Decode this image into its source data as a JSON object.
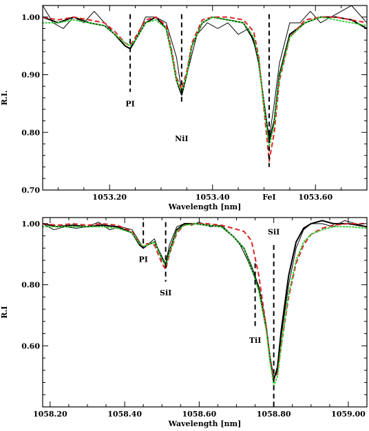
{
  "chart_data": [
    {
      "type": "line",
      "xlabel": "Wavelength [nm]",
      "ylabel": "R.I.",
      "xlim": [
        1053.07,
        1053.7
      ],
      "ylim": [
        0.7,
        1.02
      ],
      "x_ticks": [
        1053.2,
        1053.4,
        1053.6
      ],
      "x_tick_labels": [
        "1053.20",
        "1053.40",
        "1053.60"
      ],
      "y_ticks": [
        0.7,
        0.8,
        0.9,
        1.0
      ],
      "y_tick_labels": [
        "0.70",
        "0.80",
        "0.90",
        "1.00"
      ],
      "grid": false,
      "legend": "none",
      "line_markers": [
        {
          "label": "PI",
          "x": 1053.24,
          "y_top": 1.005,
          "y_bottom": 0.87
        },
        {
          "label": "NiI",
          "x": 1053.34,
          "y_top": 1.005,
          "y_bottom": 0.85
        },
        {
          "label": "FeI",
          "x": 1053.51,
          "y_top": 1.005,
          "y_bottom": 0.74
        }
      ],
      "series": [
        {
          "color": "#000000",
          "style": "solid",
          "width": 1.0,
          "x": [
            1053.07,
            1053.09,
            1053.11,
            1053.13,
            1053.15,
            1053.17,
            1053.19,
            1053.21,
            1053.23,
            1053.24,
            1053.25,
            1053.27,
            1053.29,
            1053.31,
            1053.33,
            1053.34,
            1053.35,
            1053.37,
            1053.39,
            1053.41,
            1053.43,
            1053.45,
            1053.47,
            1053.49,
            1053.5,
            1053.51,
            1053.52,
            1053.53,
            1053.55,
            1053.57,
            1053.59,
            1053.61,
            1053.63,
            1053.65,
            1053.67,
            1053.69,
            1053.7
          ],
          "y": [
            1.02,
            0.99,
            0.98,
            1.0,
            0.99,
            1.01,
            0.99,
            0.97,
            0.95,
            0.945,
            0.96,
            1.0,
            1.0,
            0.99,
            0.93,
            0.87,
            0.9,
            0.97,
            0.99,
            0.98,
            0.99,
            0.97,
            0.98,
            0.93,
            0.84,
            0.79,
            0.85,
            0.92,
            0.99,
            0.99,
            1.01,
            0.99,
            1.0,
            1.01,
            1.02,
            1.0,
            0.99
          ]
        },
        {
          "color": "#000000",
          "style": "solid",
          "width": 2.0,
          "x": [
            1053.07,
            1053.1,
            1053.13,
            1053.16,
            1053.19,
            1053.21,
            1053.23,
            1053.24,
            1053.25,
            1053.27,
            1053.29,
            1053.31,
            1053.32,
            1053.33,
            1053.34,
            1053.35,
            1053.36,
            1053.38,
            1053.4,
            1053.43,
            1053.46,
            1053.48,
            1053.49,
            1053.5,
            1053.51,
            1053.52,
            1053.53,
            1053.55,
            1053.58,
            1053.61,
            1053.64,
            1053.67,
            1053.7
          ],
          "y": [
            1.0,
            0.99,
            1.0,
            0.99,
            0.985,
            0.97,
            0.95,
            0.945,
            0.96,
            0.99,
            1.0,
            0.98,
            0.94,
            0.89,
            0.865,
            0.9,
            0.95,
            0.99,
            1.0,
            0.995,
            0.99,
            0.96,
            0.92,
            0.85,
            0.785,
            0.82,
            0.9,
            0.97,
            0.99,
            1.0,
            1.0,
            0.995,
            0.98
          ]
        },
        {
          "color": "#dd2222",
          "style": "dashed",
          "width": 2.0,
          "x": [
            1053.07,
            1053.1,
            1053.13,
            1053.16,
            1053.19,
            1053.21,
            1053.23,
            1053.24,
            1053.25,
            1053.27,
            1053.29,
            1053.31,
            1053.32,
            1053.33,
            1053.34,
            1053.35,
            1053.36,
            1053.38,
            1053.4,
            1053.43,
            1053.46,
            1053.48,
            1053.49,
            1053.5,
            1053.51,
            1053.52,
            1053.53,
            1053.55,
            1053.58,
            1053.61,
            1053.64,
            1053.67,
            1053.7
          ],
          "y": [
            1.0,
            0.995,
            1.0,
            0.995,
            0.99,
            0.975,
            0.955,
            0.95,
            0.965,
            0.995,
            1.0,
            0.985,
            0.945,
            0.895,
            0.875,
            0.905,
            0.955,
            0.995,
            1.0,
            1.0,
            0.995,
            0.975,
            0.93,
            0.84,
            0.75,
            0.8,
            0.89,
            0.965,
            0.995,
            1.0,
            1.0,
            0.995,
            0.99
          ]
        },
        {
          "color": "#33cc33",
          "style": "dotted",
          "width": 2.0,
          "x": [
            1053.07,
            1053.1,
            1053.13,
            1053.16,
            1053.19,
            1053.21,
            1053.23,
            1053.24,
            1053.25,
            1053.27,
            1053.29,
            1053.31,
            1053.32,
            1053.33,
            1053.34,
            1053.35,
            1053.36,
            1053.38,
            1053.4,
            1053.43,
            1053.46,
            1053.48,
            1053.49,
            1053.5,
            1053.51,
            1053.52,
            1053.53,
            1053.55,
            1053.58,
            1053.61,
            1053.64,
            1053.67,
            1053.7
          ],
          "y": [
            0.99,
            0.99,
            0.995,
            0.99,
            0.985,
            0.97,
            0.955,
            0.95,
            0.96,
            0.99,
            0.995,
            0.98,
            0.94,
            0.89,
            0.87,
            0.9,
            0.95,
            0.99,
            1.0,
            0.995,
            0.99,
            0.965,
            0.925,
            0.845,
            0.775,
            0.815,
            0.895,
            0.965,
            0.99,
            1.0,
            0.995,
            0.99,
            0.985
          ]
        }
      ]
    },
    {
      "type": "line",
      "xlabel": "Wavelength [nm]",
      "ylabel": "R.I",
      "xlim": [
        1058.18,
        1059.05
      ],
      "ylim": [
        0.4,
        1.02
      ],
      "x_ticks": [
        1058.2,
        1058.4,
        1058.6,
        1058.8,
        1059.0
      ],
      "x_tick_labels": [
        "1058.20",
        "1058.40",
        "1058.60",
        "1058.80",
        "1059.00"
      ],
      "y_ticks": [
        0.6,
        0.8,
        1.0
      ],
      "y_tick_labels": [
        "0.60",
        "0.80",
        "1.00"
      ],
      "grid": false,
      "legend": "none",
      "line_markers": [
        {
          "label": "PI",
          "x": 1058.45,
          "y_top": 1.005,
          "y_bottom": 0.92
        },
        {
          "label": "SiI",
          "x": 1058.51,
          "y_top": 1.005,
          "y_bottom": 0.81
        },
        {
          "label": "TiI",
          "x": 1058.75,
          "y_top": 0.87,
          "y_bottom": 0.66
        },
        {
          "label": "SiI",
          "x": 1058.8,
          "y_top": 0.93,
          "y_bottom": 0.4
        }
      ],
      "series": [
        {
          "color": "#000000",
          "style": "solid",
          "width": 1.0,
          "x": [
            1058.18,
            1058.21,
            1058.24,
            1058.27,
            1058.3,
            1058.33,
            1058.36,
            1058.39,
            1058.42,
            1058.44,
            1058.45,
            1058.46,
            1058.48,
            1058.5,
            1058.51,
            1058.52,
            1058.54,
            1058.56,
            1058.58,
            1058.6,
            1058.63,
            1058.66,
            1058.69,
            1058.71,
            1058.73,
            1058.75,
            1058.76,
            1058.78,
            1058.79,
            1058.8,
            1058.81,
            1058.82,
            1058.84,
            1058.86,
            1058.88,
            1058.9,
            1058.93,
            1058.96,
            1058.99,
            1059.02,
            1059.05
          ],
          "y": [
            1.0,
            0.98,
            0.99,
            0.985,
            0.99,
            1.005,
            0.98,
            0.99,
            0.98,
            0.94,
            0.92,
            0.93,
            0.95,
            0.88,
            0.87,
            0.93,
            0.99,
            1.0,
            0.995,
            1.005,
            0.99,
            0.995,
            0.96,
            0.93,
            0.88,
            0.82,
            0.78,
            0.65,
            0.55,
            0.49,
            0.52,
            0.63,
            0.8,
            0.92,
            0.98,
            1.0,
            1.0,
            0.99,
            1.01,
            1.0,
            0.99
          ]
        },
        {
          "color": "#000000",
          "style": "solid",
          "width": 2.0,
          "x": [
            1058.18,
            1058.22,
            1058.26,
            1058.3,
            1058.34,
            1058.38,
            1058.42,
            1058.44,
            1058.45,
            1058.46,
            1058.48,
            1058.5,
            1058.51,
            1058.52,
            1058.54,
            1058.56,
            1058.59,
            1058.62,
            1058.66,
            1058.69,
            1058.72,
            1058.74,
            1058.76,
            1058.78,
            1058.79,
            1058.8,
            1058.81,
            1058.82,
            1058.84,
            1058.86,
            1058.88,
            1058.9,
            1058.93,
            1058.96,
            1059.0,
            1059.05
          ],
          "y": [
            1.0,
            0.99,
            0.995,
            0.99,
            0.995,
            0.99,
            0.97,
            0.93,
            0.92,
            0.93,
            0.94,
            0.89,
            0.865,
            0.91,
            0.98,
            1.0,
            1.0,
            0.995,
            0.99,
            0.96,
            0.92,
            0.86,
            0.79,
            0.66,
            0.56,
            0.49,
            0.53,
            0.65,
            0.83,
            0.94,
            0.985,
            1.0,
            1.01,
            1.0,
            1.0,
            0.99
          ]
        },
        {
          "color": "#dd2222",
          "style": "dashed",
          "width": 2.0,
          "x": [
            1058.18,
            1058.22,
            1058.26,
            1058.3,
            1058.34,
            1058.38,
            1058.42,
            1058.44,
            1058.45,
            1058.46,
            1058.48,
            1058.5,
            1058.51,
            1058.52,
            1058.54,
            1058.56,
            1058.59,
            1058.62,
            1058.66,
            1058.69,
            1058.72,
            1058.74,
            1058.76,
            1058.78,
            1058.79,
            1058.8,
            1058.81,
            1058.82,
            1058.84,
            1058.86,
            1058.88,
            1058.9,
            1058.93,
            1058.96,
            1059.0,
            1059.05
          ],
          "y": [
            1.0,
            0.995,
            1.0,
            0.995,
            1.0,
            0.995,
            0.975,
            0.935,
            0.925,
            0.935,
            0.93,
            0.87,
            0.85,
            0.9,
            0.97,
            0.995,
            1.0,
            1.0,
            0.995,
            0.985,
            0.975,
            0.945,
            0.83,
            0.66,
            0.55,
            0.49,
            0.51,
            0.6,
            0.76,
            0.87,
            0.93,
            0.965,
            0.985,
            0.995,
            1.0,
            1.0
          ]
        },
        {
          "color": "#33cc33",
          "style": "dotted",
          "width": 2.0,
          "x": [
            1058.18,
            1058.22,
            1058.26,
            1058.3,
            1058.34,
            1058.38,
            1058.42,
            1058.44,
            1058.45,
            1058.46,
            1058.48,
            1058.5,
            1058.51,
            1058.52,
            1058.54,
            1058.56,
            1058.59,
            1058.62,
            1058.66,
            1058.69,
            1058.72,
            1058.74,
            1058.76,
            1058.78,
            1058.79,
            1058.8,
            1058.81,
            1058.82,
            1058.84,
            1058.86,
            1058.88,
            1058.9,
            1058.93,
            1058.96,
            1059.0,
            1059.05
          ],
          "y": [
            0.99,
            0.99,
            0.99,
            0.99,
            0.99,
            0.985,
            0.97,
            0.935,
            0.925,
            0.93,
            0.94,
            0.885,
            0.86,
            0.905,
            0.975,
            0.995,
            1.0,
            0.995,
            0.99,
            0.96,
            0.92,
            0.855,
            0.78,
            0.65,
            0.55,
            0.47,
            0.5,
            0.6,
            0.77,
            0.88,
            0.94,
            0.965,
            0.98,
            0.99,
            0.99,
            0.985
          ]
        }
      ]
    }
  ]
}
